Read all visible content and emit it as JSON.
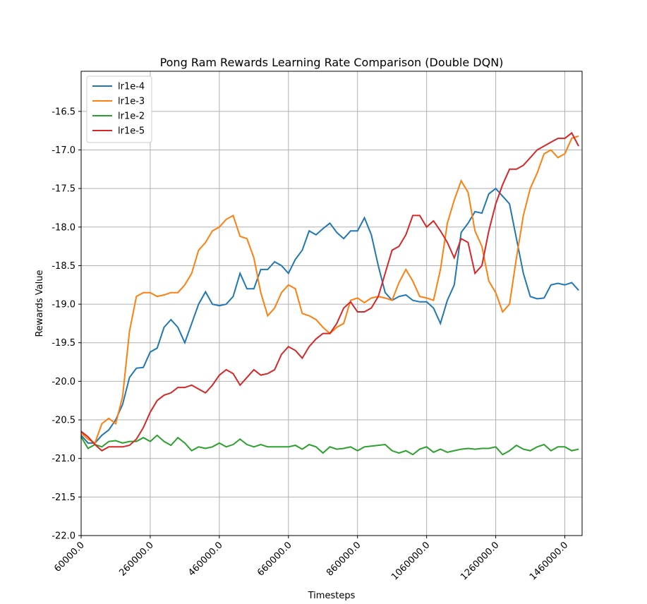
{
  "chart_data": {
    "type": "line",
    "title": "Pong Ram Rewards Learning Rate Comparison (Double DQN)",
    "x_label": "Timesteps",
    "y_label": "Rewards Value",
    "x": [
      60000,
      80000,
      100000,
      120000,
      140000,
      160000,
      180000,
      200000,
      220000,
      240000,
      260000,
      280000,
      300000,
      320000,
      340000,
      360000,
      380000,
      400000,
      420000,
      440000,
      460000,
      480000,
      500000,
      520000,
      540000,
      560000,
      580000,
      600000,
      620000,
      640000,
      660000,
      680000,
      700000,
      720000,
      740000,
      760000,
      780000,
      800000,
      820000,
      840000,
      860000,
      880000,
      900000,
      920000,
      940000,
      960000,
      980000,
      1000000,
      1020000,
      1040000,
      1060000,
      1080000,
      1100000,
      1120000,
      1140000,
      1160000,
      1180000,
      1200000,
      1220000,
      1240000,
      1260000,
      1280000,
      1300000,
      1320000,
      1340000,
      1360000,
      1380000,
      1400000,
      1420000,
      1440000,
      1460000,
      1480000,
      1500000
    ],
    "series": [
      {
        "name": "lr1e-4",
        "color": "#1f77b4",
        "values": [
          -20.7,
          -20.8,
          -20.8,
          -20.7,
          -20.63,
          -20.5,
          -20.3,
          -19.95,
          -19.83,
          -19.82,
          -19.62,
          -19.57,
          -19.3,
          -19.2,
          -19.3,
          -19.5,
          -19.25,
          -19.0,
          -18.84,
          -19.0,
          -19.02,
          -19.0,
          -18.9,
          -18.6,
          -18.8,
          -18.8,
          -18.55,
          -18.55,
          -18.45,
          -18.5,
          -18.6,
          -18.42,
          -18.3,
          -18.05,
          -18.1,
          -18.02,
          -17.95,
          -18.07,
          -18.15,
          -18.05,
          -18.05,
          -17.88,
          -18.1,
          -18.5,
          -18.85,
          -18.95,
          -18.9,
          -18.88,
          -18.95,
          -18.97,
          -18.97,
          -19.05,
          -19.25,
          -18.95,
          -18.75,
          -18.07,
          -17.95,
          -17.8,
          -17.82,
          -17.57,
          -17.5,
          -17.6,
          -17.7,
          -18.15,
          -18.6,
          -18.9,
          -18.93,
          -18.92,
          -18.75,
          -18.73,
          -18.75,
          -18.72,
          -18.82
        ]
      },
      {
        "name": "lr1e-3",
        "color": "#ff7f0e",
        "values": [
          -20.67,
          -20.75,
          -20.8,
          -20.55,
          -20.48,
          -20.55,
          -20.2,
          -19.35,
          -18.9,
          -18.85,
          -18.85,
          -18.9,
          -18.88,
          -18.85,
          -18.85,
          -18.75,
          -18.6,
          -18.3,
          -18.2,
          -18.05,
          -18.0,
          -17.9,
          -17.85,
          -18.12,
          -18.15,
          -18.4,
          -18.85,
          -19.15,
          -19.05,
          -18.85,
          -18.75,
          -18.8,
          -19.12,
          -19.15,
          -19.2,
          -19.3,
          -19.38,
          -19.3,
          -19.25,
          -18.95,
          -18.92,
          -18.98,
          -18.92,
          -18.9,
          -18.92,
          -18.95,
          -18.72,
          -18.55,
          -18.7,
          -18.9,
          -18.92,
          -18.95,
          -18.55,
          -17.95,
          -17.65,
          -17.4,
          -17.55,
          -18.05,
          -18.25,
          -18.7,
          -18.85,
          -19.1,
          -19.0,
          -18.4,
          -17.85,
          -17.5,
          -17.3,
          -17.05,
          -17.0,
          -17.1,
          -17.05,
          -16.85,
          -16.82
        ]
      },
      {
        "name": "lr1e-2",
        "color": "#2ca02c",
        "values": [
          -20.72,
          -20.87,
          -20.82,
          -20.85,
          -20.78,
          -20.77,
          -20.8,
          -20.78,
          -20.78,
          -20.73,
          -20.78,
          -20.7,
          -20.78,
          -20.83,
          -20.73,
          -20.8,
          -20.9,
          -20.85,
          -20.87,
          -20.85,
          -20.8,
          -20.85,
          -20.82,
          -20.75,
          -20.82,
          -20.85,
          -20.82,
          -20.85,
          -20.85,
          -20.85,
          -20.85,
          -20.83,
          -20.88,
          -20.82,
          -20.85,
          -20.93,
          -20.85,
          -20.88,
          -20.87,
          -20.85,
          -20.9,
          -20.85,
          -20.84,
          -20.83,
          -20.82,
          -20.9,
          -20.93,
          -20.9,
          -20.95,
          -20.88,
          -20.85,
          -20.92,
          -20.88,
          -20.92,
          -20.9,
          -20.88,
          -20.87,
          -20.88,
          -20.87,
          -20.87,
          -20.85,
          -20.95,
          -20.9,
          -20.83,
          -20.88,
          -20.9,
          -20.85,
          -20.82,
          -20.9,
          -20.85,
          -20.85,
          -20.9,
          -20.88
        ]
      },
      {
        "name": "lr1e-5",
        "color": "#d62728",
        "values": [
          -20.65,
          -20.72,
          -20.82,
          -20.9,
          -20.85,
          -20.85,
          -20.85,
          -20.83,
          -20.75,
          -20.6,
          -20.4,
          -20.25,
          -20.18,
          -20.15,
          -20.08,
          -20.08,
          -20.05,
          -20.1,
          -20.15,
          -20.05,
          -19.92,
          -19.85,
          -19.9,
          -20.05,
          -19.95,
          -19.85,
          -19.92,
          -19.9,
          -19.85,
          -19.65,
          -19.55,
          -19.6,
          -19.7,
          -19.55,
          -19.45,
          -19.38,
          -19.38,
          -19.25,
          -19.05,
          -18.97,
          -19.1,
          -19.1,
          -19.05,
          -18.9,
          -18.6,
          -18.3,
          -18.25,
          -18.1,
          -17.85,
          -17.85,
          -18.0,
          -17.92,
          -18.05,
          -18.2,
          -18.4,
          -18.15,
          -18.2,
          -18.6,
          -18.5,
          -18.05,
          -17.7,
          -17.45,
          -17.25,
          -17.25,
          -17.2,
          -17.1,
          -17.0,
          -16.95,
          -16.9,
          -16.85,
          -16.85,
          -16.78,
          -16.95
        ]
      }
    ],
    "xlim": [
      60000,
      1510000
    ],
    "ylim": [
      -22,
      -15.98
    ],
    "xticks": [
      {
        "value": 60000,
        "label": "60000.0"
      },
      {
        "value": 260000,
        "label": "260000.0"
      },
      {
        "value": 460000,
        "label": "460000.0"
      },
      {
        "value": 660000,
        "label": "660000.0"
      },
      {
        "value": 860000,
        "label": "860000.0"
      },
      {
        "value": 1060000,
        "label": "1060000.0"
      },
      {
        "value": 1260000,
        "label": "1260000.0"
      },
      {
        "value": 1460000,
        "label": "1460000.0"
      }
    ],
    "yticks": [
      {
        "value": -22,
        "label": "-22.0"
      },
      -21.5,
      {
        "value": -21,
        "label": "-21.0"
      },
      -20.5,
      {
        "value": -20,
        "label": "-20.0"
      },
      -19.5,
      {
        "value": -19,
        "label": "-19.0"
      },
      -18.5,
      {
        "value": -18,
        "label": "-18.0"
      },
      -17.5,
      {
        "value": -17,
        "label": "-17.0"
      },
      -16.5
    ],
    "grid": true,
    "legend": "upper-left"
  }
}
